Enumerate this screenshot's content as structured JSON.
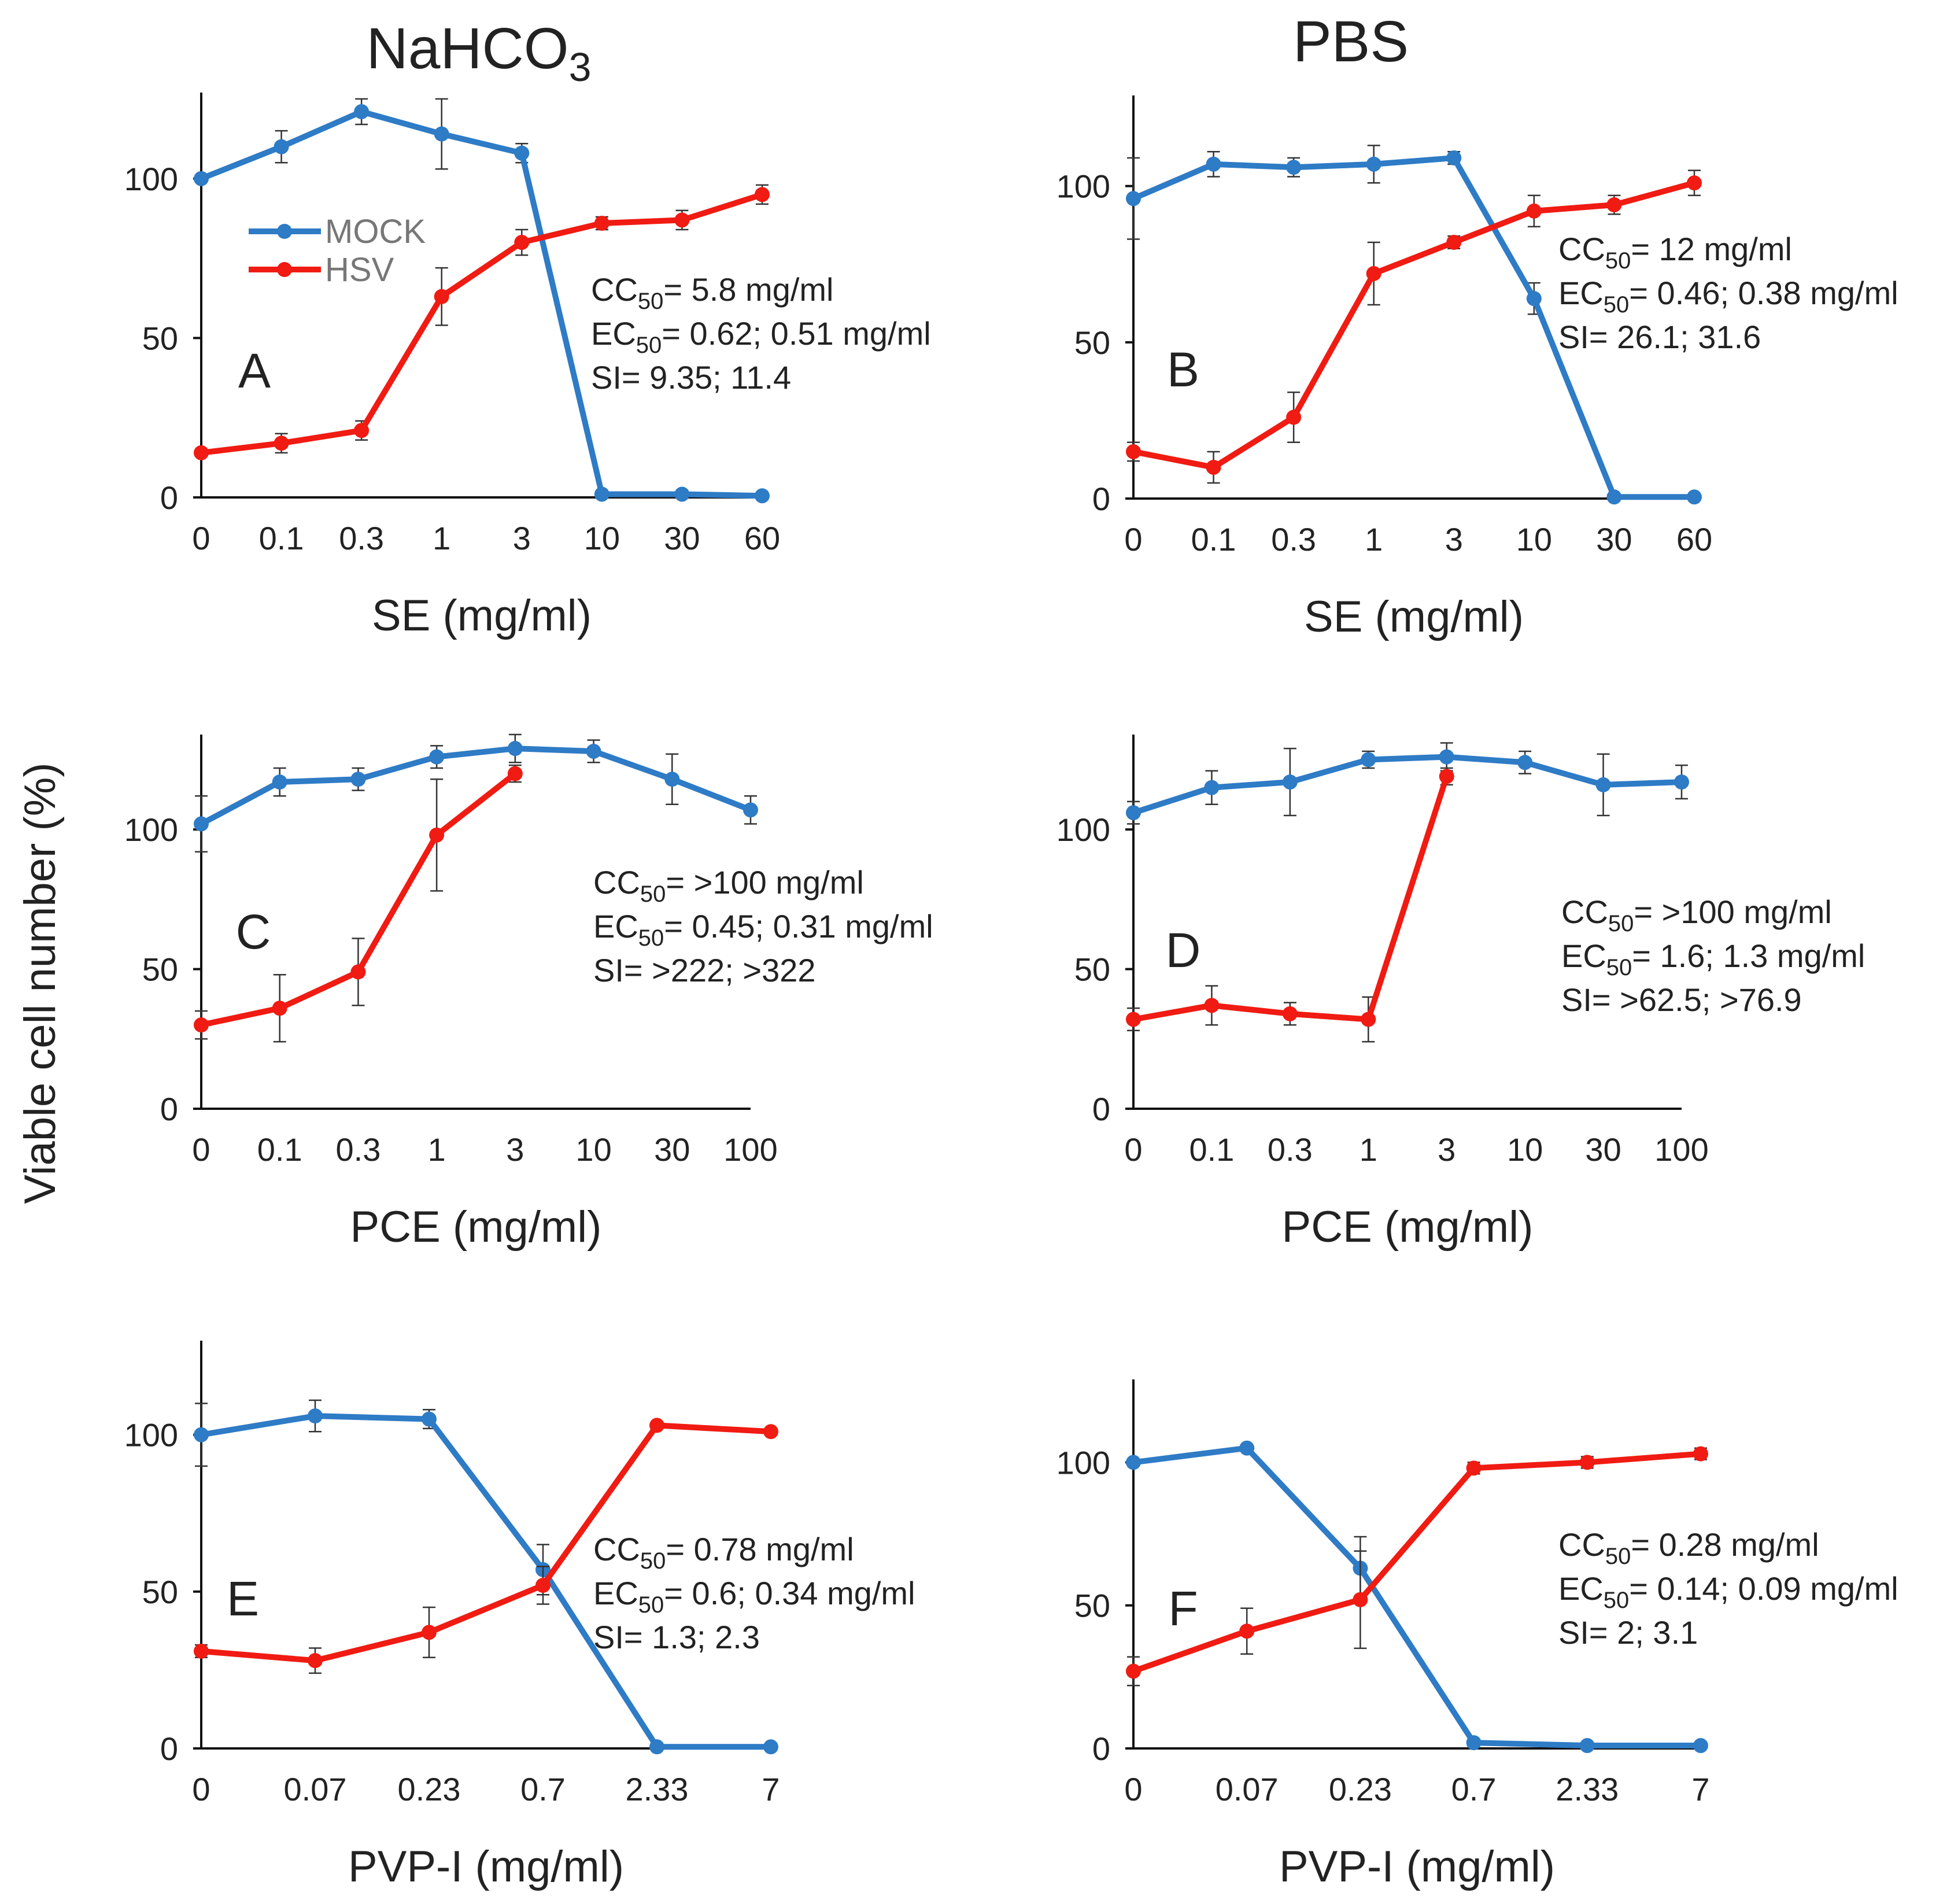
{
  "figure": {
    "column_titles": {
      "left": {
        "base": "NaHCO",
        "sub": "3"
      },
      "right": {
        "base": "PBS",
        "sub": ""
      }
    },
    "ylabel": "Viable cell number  (%)",
    "legend": [
      {
        "name": "MOCK",
        "color": "#2e7bc6"
      },
      {
        "name": "HSV",
        "color": "#f01b12"
      }
    ]
  },
  "chart_data": [
    {
      "type": "line",
      "panel": "A",
      "column": "NaHCO3",
      "xlabel": "SE  (mg/ml)",
      "categories": [
        "0",
        "0.1",
        "0.3",
        "1",
        "3",
        "10",
        "30",
        "60"
      ],
      "ylim": [
        0,
        127
      ],
      "yticks": [
        0,
        50,
        100
      ],
      "series": [
        {
          "name": "MOCK",
          "color": "#2e7bc6",
          "values": [
            100,
            110,
            121,
            114,
            108,
            1,
            1,
            0.5
          ],
          "errors": [
            0,
            5,
            4,
            11,
            3,
            1,
            1,
            1
          ]
        },
        {
          "name": "HSV",
          "color": "#f01b12",
          "values": [
            14,
            17,
            21,
            63,
            80,
            86,
            87,
            95
          ],
          "errors": [
            1,
            3,
            3,
            9,
            4,
            2,
            3,
            3
          ]
        }
      ],
      "annotations": [
        {
          "pre": "CC",
          "sub": "50",
          "post": "= 5.8 mg/ml"
        },
        {
          "pre": "EC",
          "sub": "50",
          "post": "= 0.62; 0.51 mg/ml"
        },
        {
          "pre": "SI= 9.35; 11.4",
          "sub": "",
          "post": ""
        }
      ]
    },
    {
      "type": "line",
      "panel": "B",
      "column": "PBS",
      "xlabel": "SE  (mg/ml)",
      "categories": [
        "0",
        "0.1",
        "0.3",
        "1",
        "3",
        "10",
        "30",
        "60"
      ],
      "ylim": [
        0,
        129
      ],
      "yticks": [
        0,
        50,
        100
      ],
      "series": [
        {
          "name": "MOCK",
          "color": "#2e7bc6",
          "values": [
            96,
            107,
            106,
            107,
            109,
            64,
            0.5,
            0.5
          ],
          "errors": [
            13,
            4,
            3,
            6,
            2,
            5,
            0,
            0
          ]
        },
        {
          "name": "HSV",
          "color": "#f01b12",
          "values": [
            15,
            10,
            26,
            72,
            82,
            92,
            94,
            101
          ],
          "errors": [
            3,
            5,
            8,
            10,
            2,
            5,
            3,
            4
          ]
        }
      ],
      "annotations": [
        {
          "pre": "CC",
          "sub": "50",
          "post": "= 12 mg/ml"
        },
        {
          "pre": "EC",
          "sub": "50",
          "post": "= 0.46; 0.38 mg/ml"
        },
        {
          "pre": "SI= 26.1; 31.6",
          "sub": "",
          "post": ""
        }
      ]
    },
    {
      "type": "line",
      "panel": "C",
      "column": "NaHCO3",
      "xlabel": "PCE  (mg/ml)",
      "categories": [
        "0",
        "0.1",
        "0.3",
        "1",
        "3",
        "10",
        "30",
        "100"
      ],
      "ylim": [
        0,
        134
      ],
      "yticks": [
        0,
        50,
        100
      ],
      "series": [
        {
          "name": "MOCK",
          "color": "#2e7bc6",
          "values": [
            102,
            117,
            118,
            126,
            129,
            128,
            118,
            107
          ],
          "errors": [
            10,
            5,
            4,
            4,
            5,
            4,
            9,
            5
          ]
        },
        {
          "name": "HSV",
          "color": "#f01b12",
          "values": [
            30,
            36,
            49,
            98,
            120,
            null,
            null,
            null
          ],
          "errors": [
            5,
            12,
            12,
            20,
            3,
            null,
            null,
            null
          ]
        }
      ],
      "annotations": [
        {
          "pre": "CC",
          "sub": "50",
          "post": "= >100 mg/ml"
        },
        {
          "pre": "EC",
          "sub": "50",
          "post": "= 0.45;  0.31 mg/ml"
        },
        {
          "pre": "SI= >222;   >322",
          "sub": "",
          "post": ""
        }
      ]
    },
    {
      "type": "line",
      "panel": "D",
      "column": "PBS",
      "xlabel": "PCE  (mg/ml)",
      "categories": [
        "0",
        "0.1",
        "0.3",
        "1",
        "3",
        "10",
        "30",
        "100"
      ],
      "ylim": [
        0,
        134
      ],
      "yticks": [
        0,
        50,
        100
      ],
      "series": [
        {
          "name": "MOCK",
          "color": "#2e7bc6",
          "values": [
            106,
            115,
            117,
            125,
            126,
            124,
            116,
            117
          ],
          "errors": [
            4,
            6,
            12,
            3,
            5,
            4,
            11,
            6
          ]
        },
        {
          "name": "HSV",
          "color": "#f01b12",
          "values": [
            32,
            37,
            34,
            32,
            119,
            null,
            null,
            null
          ],
          "errors": [
            4,
            7,
            4,
            8,
            3,
            null,
            null,
            null
          ]
        }
      ],
      "annotations": [
        {
          "pre": "CC",
          "sub": "50",
          "post": "= >100 mg/ml"
        },
        {
          "pre": "EC",
          "sub": "50",
          "post": "= 1.6;  1.3 mg/ml"
        },
        {
          "pre": "SI= >62.5;  >76.9",
          "sub": "",
          "post": ""
        }
      ]
    },
    {
      "type": "line",
      "panel": "E",
      "column": "NaHCO3",
      "xlabel": "PVP-I  (mg/ml)",
      "categories": [
        "0",
        "0.07",
        "0.23",
        "0.7",
        "2.33",
        "7"
      ],
      "ylim": [
        0,
        130
      ],
      "yticks": [
        0,
        50,
        100
      ],
      "series": [
        {
          "name": "MOCK",
          "color": "#2e7bc6",
          "values": [
            100,
            106,
            105,
            57,
            0.5,
            0.5
          ],
          "errors": [
            10,
            5,
            3,
            8,
            0,
            0
          ]
        },
        {
          "name": "HSV",
          "color": "#f01b12",
          "values": [
            31,
            28,
            37,
            52,
            103,
            101
          ],
          "errors": [
            2,
            4,
            8,
            6,
            1,
            1
          ]
        }
      ],
      "annotations": [
        {
          "pre": "CC",
          "sub": "50",
          "post": "= 0.78 mg/ml"
        },
        {
          "pre": "EC",
          "sub": "50",
          "post": "= 0.6;  0.34 mg/ml"
        },
        {
          "pre": "SI= 1.3;   2.3",
          "sub": "",
          "post": ""
        }
      ]
    },
    {
      "type": "line",
      "panel": "F",
      "column": "PBS",
      "xlabel": "PVP-I  (mg/ml)",
      "categories": [
        "0",
        "0.07",
        "0.23",
        "0.7",
        "2.33",
        "7"
      ],
      "ylim": [
        0,
        129
      ],
      "yticks": [
        0,
        50,
        100
      ],
      "series": [
        {
          "name": "MOCK",
          "color": "#2e7bc6",
          "values": [
            100,
            105,
            63,
            2,
            1,
            1
          ],
          "errors": [
            0,
            1,
            11,
            1,
            1,
            0.5
          ]
        },
        {
          "name": "HSV",
          "color": "#f01b12",
          "values": [
            27,
            41,
            52,
            98,
            100,
            103
          ],
          "errors": [
            5,
            8,
            17,
            2,
            2,
            2
          ]
        }
      ],
      "annotations": [
        {
          "pre": "CC",
          "sub": "50",
          "post": "= 0.28  mg/ml"
        },
        {
          "pre": "EC",
          "sub": "50",
          "post": "= 0.14;  0.09 mg/ml"
        },
        {
          "pre": "SI= 2;   3.1",
          "sub": "",
          "post": ""
        }
      ]
    }
  ]
}
